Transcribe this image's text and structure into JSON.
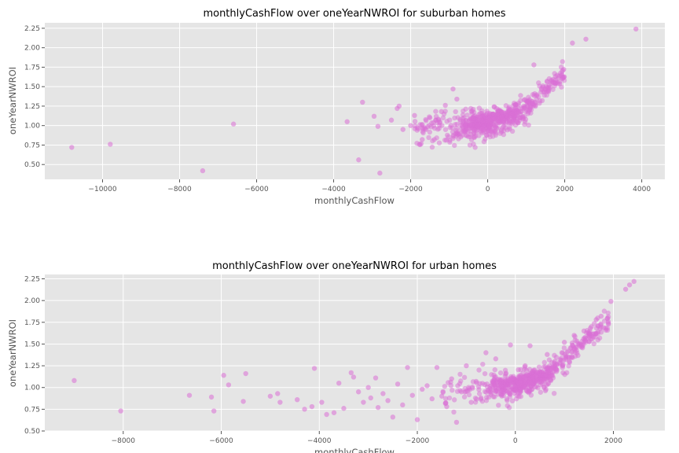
{
  "chart_data": [
    {
      "type": "scatter",
      "title": "monthlyCashFlow over oneYearNWROI for suburban homes",
      "xlabel": "monthlyCashFlow",
      "ylabel": "oneYearNWROI",
      "xlim": [
        -11500,
        4600
      ],
      "ylim": [
        0.31,
        2.32
      ],
      "xticks": [
        -10000,
        -8000,
        -6000,
        -4000,
        -2000,
        0,
        2000,
        4000
      ],
      "xtick_labels": [
        "−10000",
        "−8000",
        "−6000",
        "−4000",
        "−2000",
        "0",
        "2000",
        "4000"
      ],
      "yticks": [
        0.5,
        0.75,
        1.0,
        1.25,
        1.5,
        1.75,
        2.0,
        2.25
      ],
      "ytick_labels": [
        "0.50",
        "0.75",
        "1.00",
        "1.25",
        "1.50",
        "1.75",
        "2.00",
        "2.25"
      ],
      "grid": true,
      "marker_color": "#da70d6",
      "series": [
        {
          "x": [
            -10800,
            -9800,
            -7400,
            -6600,
            -3650,
            -3350,
            -3250,
            -2950,
            -2850,
            -2800,
            -2500,
            -2350,
            -2300,
            -2200,
            -2000,
            -1900,
            -1800,
            -1700,
            -1600,
            -1500,
            -1350,
            -1200,
            -1100,
            -900,
            -800,
            1200,
            2200,
            2550,
            3850
          ],
          "y": [
            0.72,
            0.76,
            0.42,
            1.02,
            1.05,
            0.56,
            1.3,
            1.12,
            0.99,
            0.39,
            1.07,
            1.22,
            1.25,
            0.95,
            1.0,
            1.13,
            0.96,
            0.82,
            0.95,
            1.1,
            1.07,
            1.18,
            1.26,
            1.47,
            1.34,
            1.78,
            2.06,
            2.11,
            2.24
          ]
        }
      ]
    },
    {
      "type": "scatter",
      "title": "monthlyCashFlow over oneYearNWROI for urban homes",
      "xlabel": "monthlyCashFlow",
      "ylabel": "oneYearNWROI",
      "xlim": [
        -9600,
        3050
      ],
      "ylim": [
        0.5,
        2.3
      ],
      "xticks": [
        -8000,
        -6000,
        -4000,
        -2000,
        0,
        2000
      ],
      "xtick_labels": [
        "−8000",
        "−6000",
        "−4000",
        "−2000",
        "0",
        "2000"
      ],
      "yticks": [
        0.5,
        0.75,
        1.0,
        1.25,
        1.5,
        1.75,
        2.0,
        2.25
      ],
      "ytick_labels": [
        "0.50",
        "0.75",
        "1.00",
        "1.25",
        "1.50",
        "1.75",
        "2.00",
        "2.25"
      ],
      "grid": true,
      "marker_color": "#da70d6",
      "series": [
        {
          "x": [
            -9000,
            -8050,
            -6650,
            -6200,
            -6150,
            -5950,
            -5850,
            -5550,
            -5500,
            -5000,
            -4850,
            -4800,
            -4450,
            -4300,
            -4150,
            -4100,
            -3950,
            -3850,
            -3700,
            -3600,
            -3500,
            -3350,
            -3300,
            -3200,
            -3100,
            -3000,
            -2950,
            -2850,
            -2800,
            -2700,
            -2600,
            -2500,
            -2400,
            -2300,
            -2200,
            -2100,
            -2000,
            -1900,
            -1800,
            -1700,
            -1600,
            -1500,
            -1400,
            -1300,
            -1200,
            -1100,
            -1000,
            -900,
            -800,
            -700,
            -600,
            -500,
            -400,
            -350,
            -300,
            -250,
            -150,
            -100,
            0,
            100,
            200,
            300,
            350,
            500,
            650,
            800,
            1000,
            1100,
            1200,
            1400,
            1550,
            1650,
            1750,
            1950,
            2250,
            2330,
            2420
          ],
          "y": [
            1.08,
            0.73,
            0.91,
            0.89,
            0.73,
            1.14,
            1.03,
            0.84,
            1.16,
            0.9,
            0.93,
            0.83,
            0.86,
            0.75,
            0.78,
            1.22,
            0.83,
            0.69,
            0.71,
            1.05,
            0.76,
            1.17,
            1.12,
            0.95,
            0.83,
            1.0,
            0.88,
            1.11,
            0.77,
            0.93,
            0.85,
            0.66,
            1.04,
            0.8,
            1.23,
            0.91,
            0.63,
            0.98,
            1.02,
            0.87,
            1.23,
            0.9,
            0.78,
            1.1,
            0.6,
            0.95,
            1.25,
            0.83,
            1.07,
            0.88,
            1.4,
            0.92,
            1.33,
            1.02,
            0.97,
            1.06,
            1.1,
            1.49,
            1.02,
            1.1,
            1.25,
            1.48,
            1.12,
            1.18,
            1.38,
            1.22,
            1.52,
            1.3,
            1.6,
            1.65,
            1.7,
            1.78,
            1.82,
            1.99,
            2.13,
            2.18,
            2.22
          ]
        }
      ]
    }
  ]
}
